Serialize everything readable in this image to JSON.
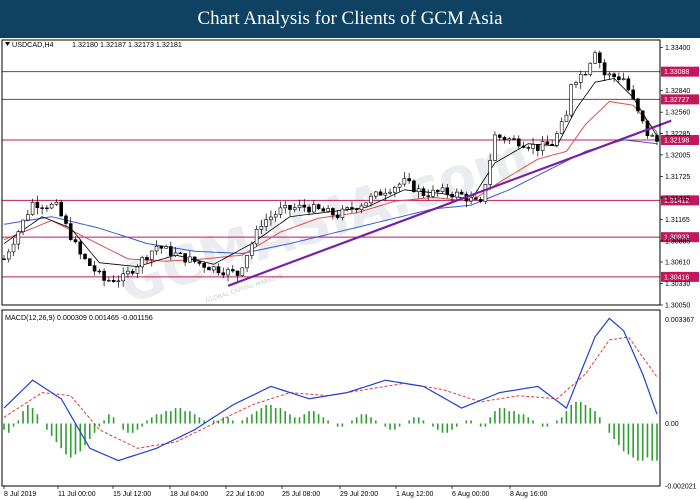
{
  "header": {
    "title": "Chart Analysis for Clients of GCM Asia"
  },
  "watermark": "GCMASIA.com",
  "watermark_sub": "GLOBAL CAPITAL MARKETS",
  "colors": {
    "banner": "#0f4262",
    "candle": "#000000",
    "ma_fast": "#000000",
    "ma_mid": "#e0504a",
    "ma_slow": "#3a5bd8",
    "level_line": "#c2185b",
    "level_label_bg": "#c2185b",
    "trendline": "#7b1fa2",
    "macd_line": "#1f3fd8",
    "macd_signal": "#e53935",
    "macd_hist": "#2e9e2e"
  },
  "chart_data": [
    {
      "type": "candlestick",
      "panel": "price",
      "symbol_label": "USDCAD,H4",
      "ohlc_label": "1.32180 1.32187 1.32173 1.32181",
      "ylim": [
        1.3005,
        1.335
      ],
      "y_ticks": [
        "1.33400",
        "1.32840",
        "1.32560",
        "1.32285",
        "1.32005",
        "1.31725",
        "1.31445",
        "1.31165",
        "1.30885",
        "1.30610",
        "1.30330",
        "1.30050"
      ],
      "x_ticks": [
        "8 Jul 2019",
        "11 Jul 00:00",
        "15 Jul 12:00",
        "18 Jul 04:00",
        "22 Jul 16:00",
        "25 Jul 08:00",
        "29 Jul 20:00",
        "1 Aug 12:00",
        "6 Aug 00:00",
        "8 Aug 16:00"
      ],
      "levels": [
        "1.33088",
        "1.32727",
        "1.32198",
        "1.31412",
        "1.30933",
        "1.30416"
      ],
      "candle_count": 138,
      "path": [
        [
          0,
          1.3065
        ],
        [
          6,
          1.3138
        ],
        [
          11,
          1.3133
        ],
        [
          16,
          1.307
        ],
        [
          21,
          1.3037
        ],
        [
          25,
          1.304
        ],
        [
          32,
          1.3082
        ],
        [
          37,
          1.3068
        ],
        [
          43,
          1.3055
        ],
        [
          49,
          1.3045
        ],
        [
          54,
          1.3112
        ],
        [
          58,
          1.3128
        ],
        [
          63,
          1.3133
        ],
        [
          70,
          1.3122
        ],
        [
          76,
          1.314
        ],
        [
          80,
          1.3155
        ],
        [
          84,
          1.3165
        ],
        [
          88,
          1.315
        ],
        [
          92,
          1.3152
        ],
        [
          96,
          1.3148
        ],
        [
          100,
          1.3135
        ],
        [
          103,
          1.3225
        ],
        [
          108,
          1.3218
        ],
        [
          112,
          1.321
        ],
        [
          115,
          1.3215
        ],
        [
          118,
          1.325
        ],
        [
          119,
          1.3295
        ],
        [
          122,
          1.331
        ],
        [
          124,
          1.3338
        ],
        [
          126,
          1.3305
        ],
        [
          130,
          1.33
        ],
        [
          133,
          1.3255
        ],
        [
          135,
          1.3228
        ],
        [
          137,
          1.3218
        ]
      ],
      "ma_fast_path": [
        [
          0,
          1.3085
        ],
        [
          8,
          1.312
        ],
        [
          14,
          1.3105
        ],
        [
          20,
          1.306
        ],
        [
          28,
          1.3055
        ],
        [
          36,
          1.307
        ],
        [
          44,
          1.3058
        ],
        [
          52,
          1.3085
        ],
        [
          60,
          1.312
        ],
        [
          68,
          1.3126
        ],
        [
          76,
          1.3132
        ],
        [
          84,
          1.3155
        ],
        [
          92,
          1.315
        ],
        [
          98,
          1.3142
        ],
        [
          103,
          1.319
        ],
        [
          110,
          1.3215
        ],
        [
          116,
          1.3212
        ],
        [
          120,
          1.326
        ],
        [
          124,
          1.3295
        ],
        [
          128,
          1.33
        ],
        [
          132,
          1.3275
        ],
        [
          137,
          1.3225
        ]
      ],
      "ma_mid_path": [
        [
          0,
          1.309
        ],
        [
          10,
          1.3115
        ],
        [
          18,
          1.309
        ],
        [
          26,
          1.3065
        ],
        [
          34,
          1.3062
        ],
        [
          42,
          1.3065
        ],
        [
          50,
          1.307
        ],
        [
          58,
          1.31
        ],
        [
          66,
          1.3118
        ],
        [
          74,
          1.3125
        ],
        [
          82,
          1.314
        ],
        [
          90,
          1.3145
        ],
        [
          98,
          1.314
        ],
        [
          104,
          1.3165
        ],
        [
          112,
          1.3195
        ],
        [
          118,
          1.3205
        ],
        [
          122,
          1.324
        ],
        [
          127,
          1.327
        ],
        [
          132,
          1.3265
        ],
        [
          137,
          1.323
        ]
      ],
      "ma_slow_path": [
        [
          0,
          1.311
        ],
        [
          10,
          1.312
        ],
        [
          20,
          1.3105
        ],
        [
          30,
          1.3085
        ],
        [
          40,
          1.3075
        ],
        [
          50,
          1.3072
        ],
        [
          60,
          1.3085
        ],
        [
          70,
          1.31
        ],
        [
          80,
          1.3115
        ],
        [
          90,
          1.313
        ],
        [
          98,
          1.3135
        ],
        [
          106,
          1.3155
        ],
        [
          114,
          1.318
        ],
        [
          122,
          1.3205
        ],
        [
          130,
          1.322
        ],
        [
          137,
          1.3215
        ]
      ],
      "trendline": [
        [
          47,
          1.303
        ],
        [
          140,
          1.3245
        ]
      ]
    },
    {
      "type": "macd",
      "panel": "oscillator",
      "label": "MACD(12,26,9) 0.000309 0.001465 -0.001156",
      "ylim": [
        -0.00202,
        0.00367
      ],
      "y_ticks": [
        "0.003367",
        "0.00",
        "-0.002021"
      ],
      "histogram": [
        -0.0002,
        -0.0003,
        -0.0001,
        0.0001,
        0.0004,
        0.0006,
        0.0005,
        0.0003,
        0.0,
        -0.0002,
        -0.0004,
        -0.0006,
        -0.0008,
        -0.001,
        -0.0011,
        -0.001,
        -0.0009,
        -0.0007,
        -0.0005,
        -0.0003,
        -0.0001,
        0.0001,
        0.0003,
        0.0002,
        0.0,
        -0.0002,
        -0.0003,
        -0.0003,
        -0.0002,
        -0.0001,
        0.0001,
        0.0002,
        0.0003,
        0.0003,
        0.0004,
        0.0004,
        0.0005,
        0.0005,
        0.0004,
        0.0004,
        0.0003,
        0.0002,
        0.0001,
        0.0,
        0.0001,
        0.0001,
        0.0002,
        0.0002,
        0.0001,
        0.0,
        0.0001,
        0.0002,
        0.0003,
        0.0004,
        0.0005,
        0.0006,
        0.0006,
        0.0005,
        0.0005,
        0.0004,
        0.0003,
        0.0002,
        0.0002,
        0.0003,
        0.0004,
        0.0004,
        0.0003,
        0.0002,
        0.0001,
        0.0,
        -0.0001,
        -0.0001,
        0.0,
        0.0001,
        0.0002,
        0.0003,
        0.0003,
        0.0002,
        0.0001,
        0.0,
        -0.0001,
        -0.0002,
        -0.0002,
        -0.0001,
        0.0,
        0.0001,
        0.0002,
        0.0002,
        0.0001,
        0.0,
        -0.0001,
        -0.0002,
        -0.0003,
        -0.0003,
        -0.0002,
        -0.0001,
        0.0,
        0.0001,
        0.0001,
        0.0,
        -0.0001,
        -0.0001,
        0.0002,
        0.0004,
        0.0005,
        0.0005,
        0.0004,
        0.0004,
        0.0003,
        0.0003,
        0.0002,
        0.0001,
        0.0,
        -0.0001,
        -0.0001,
        0.0,
        0.0001,
        0.0002,
        0.0004,
        0.0006,
        0.0007,
        0.0007,
        0.0006,
        0.0005,
        0.0004,
        0.0002,
        0.0,
        -0.0003,
        -0.0005,
        -0.0007,
        -0.0009,
        -0.001,
        -0.0011,
        -0.0012,
        -0.0012,
        -0.0011,
        -0.0012,
        -0.0012
      ],
      "macd_path": [
        [
          0,
          0.0005
        ],
        [
          6,
          0.0014
        ],
        [
          12,
          0.0008
        ],
        [
          18,
          -0.0008
        ],
        [
          24,
          -0.0012
        ],
        [
          32,
          -0.0008
        ],
        [
          40,
          -0.0002
        ],
        [
          48,
          0.0006
        ],
        [
          56,
          0.0012
        ],
        [
          64,
          0.0008
        ],
        [
          72,
          0.001
        ],
        [
          80,
          0.0014
        ],
        [
          88,
          0.0012
        ],
        [
          96,
          0.0005
        ],
        [
          104,
          0.001
        ],
        [
          112,
          0.0012
        ],
        [
          118,
          0.0005
        ],
        [
          124,
          0.0028
        ],
        [
          127,
          0.0034
        ],
        [
          130,
          0.003
        ],
        [
          134,
          0.0016
        ],
        [
          137,
          0.0003
        ]
      ],
      "signal_path": [
        [
          0,
          0.0002
        ],
        [
          8,
          0.001
        ],
        [
          14,
          0.0009
        ],
        [
          20,
          -0.0002
        ],
        [
          28,
          -0.0008
        ],
        [
          36,
          -0.0006
        ],
        [
          44,
          0.0
        ],
        [
          52,
          0.0006
        ],
        [
          60,
          0.001
        ],
        [
          68,
          0.0009
        ],
        [
          76,
          0.0011
        ],
        [
          84,
          0.0013
        ],
        [
          92,
          0.0011
        ],
        [
          100,
          0.0007
        ],
        [
          108,
          0.0009
        ],
        [
          116,
          0.0008
        ],
        [
          122,
          0.0016
        ],
        [
          127,
          0.0027
        ],
        [
          131,
          0.0028
        ],
        [
          137,
          0.0015
        ]
      ]
    }
  ]
}
